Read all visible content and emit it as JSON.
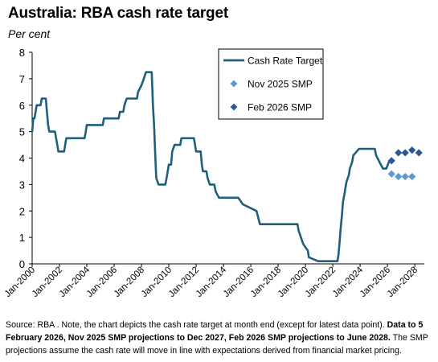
{
  "chart_data": {
    "type": "line",
    "title": "Australia: RBA cash rate target",
    "subtitle": "Per cent",
    "ylim": [
      0,
      8
    ],
    "yticks": [
      0,
      1,
      2,
      3,
      4,
      5,
      6,
      7,
      8
    ],
    "xlim": [
      2000,
      2028.7
    ],
    "xticks": [
      "Jan-2000",
      "Jan-2002",
      "Jan-2004",
      "Jan-2006",
      "Jan-2008",
      "Jan-2010",
      "Jan-2012",
      "Jan-2014",
      "Jan-2016",
      "Jan-2018",
      "Jan-2020",
      "Jan-2022",
      "Jan-2024",
      "Jan-2026",
      "Jan-2028"
    ],
    "xtick_values": [
      2000,
      2002,
      2004,
      2006,
      2008,
      2010,
      2012,
      2014,
      2016,
      2018,
      2020,
      2022,
      2024,
      2026,
      2028
    ],
    "grid": false,
    "legend_position": "top-right",
    "colors": {
      "cash_rate": "#1f5f7a",
      "nov_smp": "#5b9bd5",
      "feb_smp": "#2e5597"
    },
    "series": [
      {
        "name": "Cash Rate Target",
        "style": "line",
        "points": [
          [
            2000.0,
            5.0
          ],
          [
            2000.09,
            5.5
          ],
          [
            2000.17,
            5.5
          ],
          [
            2000.25,
            5.75
          ],
          [
            2000.33,
            6.0
          ],
          [
            2000.62,
            6.0
          ],
          [
            2000.7,
            6.25
          ],
          [
            2001.0,
            6.25
          ],
          [
            2001.08,
            5.75
          ],
          [
            2001.17,
            5.25
          ],
          [
            2001.25,
            5.0
          ],
          [
            2001.67,
            5.0
          ],
          [
            2001.75,
            4.75
          ],
          [
            2001.84,
            4.5
          ],
          [
            2001.92,
            4.25
          ],
          [
            2002.34,
            4.25
          ],
          [
            2002.42,
            4.5
          ],
          [
            2002.5,
            4.75
          ],
          [
            2003.84,
            4.75
          ],
          [
            2003.92,
            5.0
          ],
          [
            2004.0,
            5.25
          ],
          [
            2005.17,
            5.25
          ],
          [
            2005.25,
            5.5
          ],
          [
            2006.33,
            5.5
          ],
          [
            2006.42,
            5.75
          ],
          [
            2006.67,
            5.75
          ],
          [
            2006.75,
            6.0
          ],
          [
            2006.92,
            6.25
          ],
          [
            2007.67,
            6.25
          ],
          [
            2007.75,
            6.5
          ],
          [
            2008.0,
            6.75
          ],
          [
            2008.17,
            7.0
          ],
          [
            2008.33,
            7.25
          ],
          [
            2008.75,
            7.25
          ],
          [
            2008.84,
            6.0
          ],
          [
            2008.92,
            5.25
          ],
          [
            2009.0,
            4.25
          ],
          [
            2009.08,
            3.25
          ],
          [
            2009.25,
            3.0
          ],
          [
            2009.75,
            3.0
          ],
          [
            2009.84,
            3.25
          ],
          [
            2009.92,
            3.5
          ],
          [
            2010.0,
            3.75
          ],
          [
            2010.17,
            3.75
          ],
          [
            2010.25,
            4.25
          ],
          [
            2010.42,
            4.5
          ],
          [
            2010.84,
            4.5
          ],
          [
            2010.92,
            4.75
          ],
          [
            2011.84,
            4.75
          ],
          [
            2011.92,
            4.5
          ],
          [
            2012.0,
            4.25
          ],
          [
            2012.33,
            4.25
          ],
          [
            2012.42,
            3.75
          ],
          [
            2012.5,
            3.5
          ],
          [
            2012.75,
            3.5
          ],
          [
            2012.84,
            3.25
          ],
          [
            2013.0,
            3.0
          ],
          [
            2013.33,
            3.0
          ],
          [
            2013.42,
            2.75
          ],
          [
            2013.67,
            2.5
          ],
          [
            2015.08,
            2.5
          ],
          [
            2015.42,
            2.25
          ],
          [
            2016.42,
            2.0
          ],
          [
            2016.67,
            1.5
          ],
          [
            2019.42,
            1.5
          ],
          [
            2019.5,
            1.25
          ],
          [
            2019.84,
            0.75
          ],
          [
            2020.17,
            0.5
          ],
          [
            2020.25,
            0.25
          ],
          [
            2020.92,
            0.1
          ],
          [
            2022.34,
            0.1
          ],
          [
            2022.42,
            0.35
          ],
          [
            2022.5,
            0.85
          ],
          [
            2022.58,
            1.35
          ],
          [
            2022.67,
            1.85
          ],
          [
            2022.75,
            2.35
          ],
          [
            2022.84,
            2.6
          ],
          [
            2022.92,
            2.85
          ],
          [
            2023.0,
            3.1
          ],
          [
            2023.17,
            3.35
          ],
          [
            2023.25,
            3.6
          ],
          [
            2023.42,
            3.85
          ],
          [
            2023.5,
            4.1
          ],
          [
            2023.92,
            4.35
          ],
          [
            2025.08,
            4.35
          ],
          [
            2025.17,
            4.1
          ],
          [
            2025.42,
            3.85
          ],
          [
            2025.67,
            3.6
          ],
          [
            2025.92,
            3.6
          ],
          [
            2026.1,
            3.85
          ]
        ]
      },
      {
        "name": "Nov 2025 SMP",
        "style": "marker",
        "points": [
          [
            2026.3,
            3.4
          ],
          [
            2026.8,
            3.3
          ],
          [
            2027.3,
            3.3
          ],
          [
            2027.8,
            3.3
          ]
        ]
      },
      {
        "name": "Feb 2026 SMP",
        "style": "marker",
        "points": [
          [
            2026.3,
            3.9
          ],
          [
            2026.8,
            4.2
          ],
          [
            2027.3,
            4.2
          ],
          [
            2027.8,
            4.3
          ],
          [
            2028.3,
            4.2
          ]
        ]
      }
    ]
  },
  "footnote": {
    "intro": "Source: RBA . Note, the chart depicts the cash rate target at month end (except for latest data point). ",
    "bold": "Data to 5 February 2026, Nov 2025 SMP projections to Dec 2027, Feb 2026 SMP projections to June 2028.",
    "tail": " The SMP projections assume the cash rate will move in line with expectations derived from financial market pricing."
  }
}
